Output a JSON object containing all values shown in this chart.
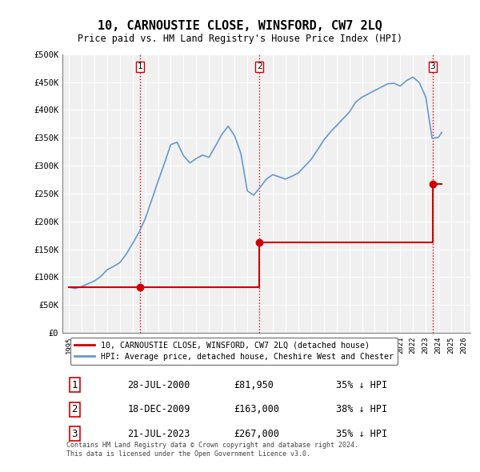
{
  "title": "10, CARNOUSTIE CLOSE, WINSFORD, CW7 2LQ",
  "subtitle": "Price paid vs. HM Land Registry's House Price Index (HPI)",
  "xlim": [
    1994.5,
    2026.5
  ],
  "ylim": [
    0,
    500000
  ],
  "yticks": [
    0,
    50000,
    100000,
    150000,
    200000,
    250000,
    300000,
    350000,
    400000,
    450000,
    500000
  ],
  "ytick_labels": [
    "£0",
    "£50K",
    "£100K",
    "£150K",
    "£200K",
    "£250K",
    "£300K",
    "£350K",
    "£400K",
    "£450K",
    "£500K"
  ],
  "xticks": [
    1995,
    1996,
    1997,
    1998,
    1999,
    2000,
    2001,
    2002,
    2003,
    2004,
    2005,
    2006,
    2007,
    2008,
    2009,
    2010,
    2011,
    2012,
    2013,
    2014,
    2015,
    2016,
    2017,
    2018,
    2019,
    2020,
    2021,
    2022,
    2023,
    2024,
    2025,
    2026
  ],
  "sale_dates": [
    2000.57,
    2009.96,
    2023.55
  ],
  "sale_prices": [
    81950,
    163000,
    267000
  ],
  "sale_labels": [
    "1",
    "2",
    "3"
  ],
  "vline_color": "#cc0000",
  "sale_marker_color": "#cc0000",
  "hpi_line_color": "#6699cc",
  "sale_line_color": "#cc0000",
  "legend_label_sale": "10, CARNOUSTIE CLOSE, WINSFORD, CW7 2LQ (detached house)",
  "legend_label_hpi": "HPI: Average price, detached house, Cheshire West and Chester",
  "table_rows": [
    {
      "num": "1",
      "date": "28-JUL-2000",
      "price": "£81,950",
      "hpi": "35% ↓ HPI"
    },
    {
      "num": "2",
      "date": "18-DEC-2009",
      "price": "£163,000",
      "hpi": "38% ↓ HPI"
    },
    {
      "num": "3",
      "date": "21-JUL-2023",
      "price": "£267,000",
      "hpi": "35% ↓ HPI"
    }
  ],
  "footnote": "Contains HM Land Registry data © Crown copyright and database right 2024.\nThis data is licensed under the Open Government Licence v3.0.",
  "bg_color": "#ffffff",
  "plot_bg_color": "#f0f0f0",
  "grid_color": "#ffffff"
}
